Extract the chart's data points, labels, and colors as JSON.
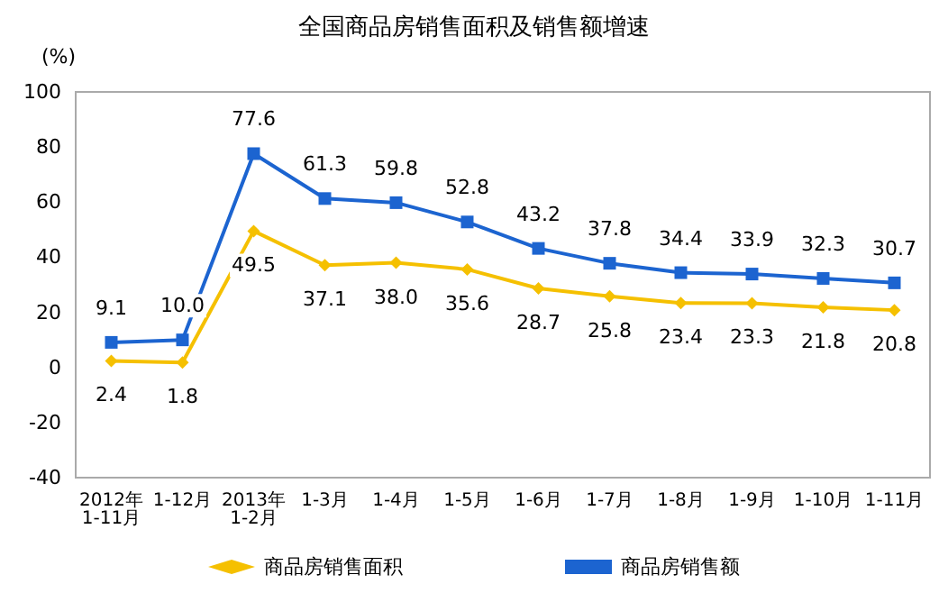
{
  "chart_data": {
    "type": "line",
    "title": "全国商品房销售面积及销售额增速",
    "ylabel": "(%)",
    "categories": [
      "2012年\n1-11月",
      "1-12月",
      "2013年\n1-2月",
      "1-3月",
      "1-4月",
      "1-5月",
      "1-6月",
      "1-7月",
      "1-8月",
      "1-9月",
      "1-10月",
      "1-11月"
    ],
    "series": [
      {
        "name": "商品房销售面积",
        "color": "#f5c000",
        "marker": "diamond",
        "values": [
          2.4,
          1.8,
          49.5,
          37.1,
          38.0,
          35.6,
          28.7,
          25.8,
          23.4,
          23.3,
          21.8,
          20.8
        ],
        "value_labels": [
          "2.4",
          "1.8",
          "49.5",
          "37.1",
          "38.0",
          "35.6",
          "28.7",
          "25.8",
          "23.4",
          "23.3",
          "21.8",
          "20.8"
        ]
      },
      {
        "name": "商品房销售额",
        "color": "#1c64d0",
        "marker": "square",
        "values": [
          9.1,
          10.0,
          77.6,
          61.3,
          59.8,
          52.8,
          43.2,
          37.8,
          34.4,
          33.9,
          32.3,
          30.7
        ],
        "value_labels": [
          "9.1",
          "10.0",
          "77.6",
          "61.3",
          "59.8",
          "52.8",
          "43.2",
          "37.8",
          "34.4",
          "33.9",
          "32.3",
          "30.7"
        ]
      }
    ],
    "ylim": [
      -40,
      100
    ],
    "yticks": [
      -40,
      -20,
      0,
      20,
      40,
      60,
      80,
      100
    ],
    "grid": false,
    "legend": "bottom"
  }
}
